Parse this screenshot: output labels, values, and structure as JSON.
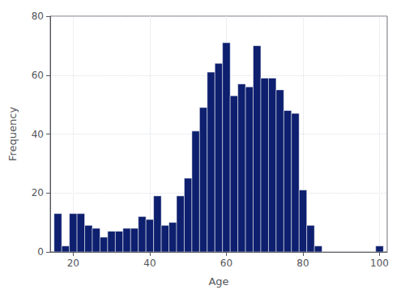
{
  "chart_data": {
    "type": "histogram",
    "bins": [
      15,
      17,
      19,
      21,
      23,
      25,
      27,
      29,
      31,
      33,
      35,
      37,
      39,
      41,
      43,
      45,
      47,
      49,
      51,
      53,
      55,
      57,
      59,
      61,
      63,
      65,
      67,
      69,
      71,
      73,
      75,
      77,
      79,
      81,
      83,
      85,
      87,
      89,
      91,
      93,
      95,
      97,
      99,
      101
    ],
    "values": [
      13,
      2,
      13,
      13,
      9,
      8,
      5,
      7,
      7,
      8,
      8,
      12,
      11,
      19,
      9,
      10,
      19,
      25,
      41,
      49,
      61,
      64,
      71,
      53,
      57,
      56,
      70,
      59,
      59,
      55,
      48,
      47,
      21,
      9,
      2,
      0,
      0,
      0,
      0,
      0,
      0,
      0,
      2
    ],
    "color": "#0d1f6e",
    "xlabel": "Age",
    "ylabel": "Frequency",
    "xlim": [
      14,
      102
    ],
    "xticks": [
      20,
      40,
      60,
      80,
      100
    ],
    "ylim": [
      0,
      80
    ],
    "yticks": [
      0,
      20,
      40,
      60,
      80
    ],
    "grid": true
  }
}
